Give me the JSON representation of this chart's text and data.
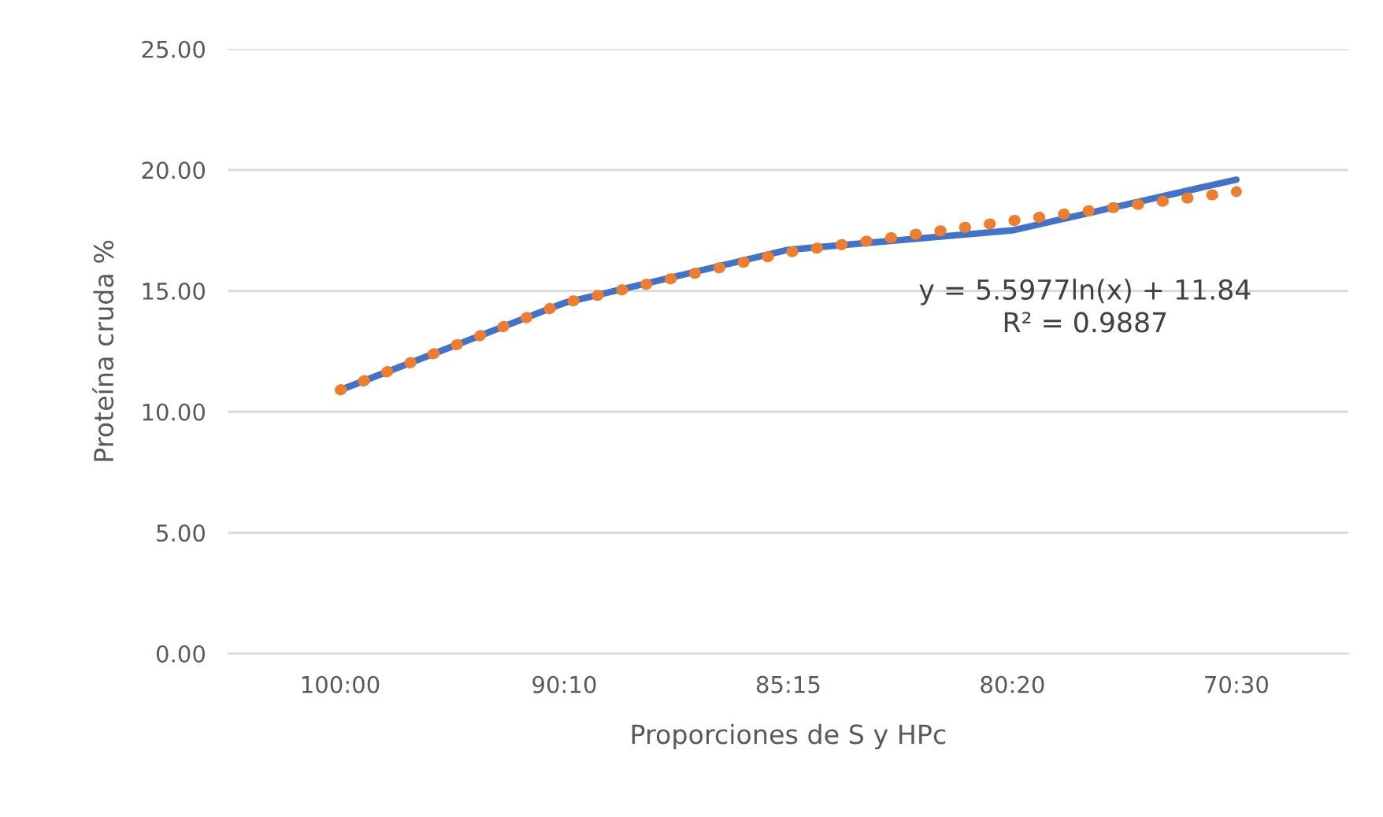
{
  "chart_data": {
    "type": "line",
    "xlabel": "Proporciones de S y HPc",
    "ylabel": "Proteína cruda %",
    "categories": [
      "100:00",
      "90:10",
      "85:15",
      "80:20",
      "70:30"
    ],
    "series": [
      {
        "color": "#4472c4",
        "values": [
          10.9,
          14.5,
          16.7,
          17.5,
          19.6
        ],
        "line_style": "solid"
      },
      {
        "color": "#ed7d31",
        "values": [
          10.9,
          14.5,
          16.6,
          17.9,
          19.1
        ],
        "line_style": "dotted"
      }
    ],
    "ylim": [
      0,
      25
    ],
    "yticks": [
      {
        "value": 0,
        "label": "0.00"
      },
      {
        "value": 5,
        "label": "5.00"
      },
      {
        "value": 10,
        "label": "10.00"
      },
      {
        "value": 15,
        "label": "15.00"
      },
      {
        "value": 20,
        "label": "20.00"
      },
      {
        "value": 25,
        "label": "25.00"
      }
    ],
    "grid": "y",
    "marker": "none",
    "annotations": [
      "y = 5.5977ln(x) + 11.84\nR² = 0.9887"
    ]
  }
}
